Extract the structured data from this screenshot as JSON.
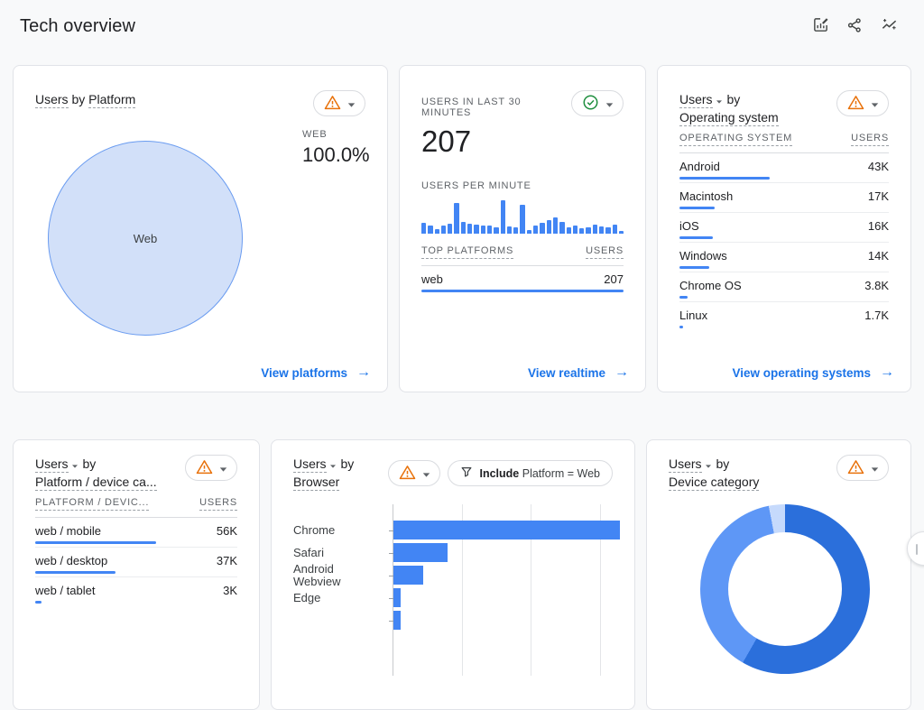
{
  "header": {
    "title": "Tech overview"
  },
  "ui": {
    "arrow": "→"
  },
  "colors": {
    "accent_blue": "#4285f4",
    "link_blue": "#1a73e8",
    "warning_orange": "#e8710a",
    "ok_green": "#1e8e3e",
    "pie_fill": "#d2e0f9",
    "pie_stroke": "#699bf0",
    "donut": [
      "#2b6fdb",
      "#5e97f6",
      "#c6dafc"
    ]
  },
  "cards": {
    "platform_pie": {
      "title_metric": "Users",
      "title_joiner": "by",
      "title_dimension": "Platform",
      "legend_label": "WEB",
      "legend_value": "100.0%",
      "link_label": "View platforms",
      "chart_data": {
        "type": "pie",
        "slices": [
          {
            "label": "Web",
            "value_pct": 100.0
          }
        ]
      }
    },
    "realtime": {
      "heading": "USERS IN LAST 30 MINUTES",
      "count": "207",
      "subheading": "USERS PER MINUTE",
      "col_dimension": "TOP PLATFORMS",
      "col_metric": "USERS",
      "rows": [
        {
          "label": "web",
          "value": "207",
          "bar_pct": 100
        }
      ],
      "link_label": "View realtime",
      "chart_data": {
        "type": "bar",
        "unit": "relative users per minute (% of max)",
        "values": [
          32,
          25,
          14,
          25,
          30,
          93,
          36,
          30,
          28,
          25,
          24,
          20,
          100,
          22,
          18,
          86,
          12,
          24,
          32,
          40,
          48,
          35,
          20,
          25,
          15,
          18,
          27,
          22,
          20,
          26,
          9
        ]
      }
    },
    "operating_system": {
      "title_metric": "Users",
      "title_joiner": "by",
      "title_dimension": "Operating system",
      "col_dimension": "OPERATING SYSTEM",
      "col_metric": "USERS",
      "rows": [
        {
          "label": "Android",
          "value": "43K",
          "bar_pct": 100
        },
        {
          "label": "Macintosh",
          "value": "17K",
          "bar_pct": 39.5
        },
        {
          "label": "iOS",
          "value": "16K",
          "bar_pct": 37.2
        },
        {
          "label": "Windows",
          "value": "14K",
          "bar_pct": 32.6
        },
        {
          "label": "Chrome OS",
          "value": "3.8K",
          "bar_pct": 8.8
        },
        {
          "label": "Linux",
          "value": "1.7K",
          "bar_pct": 4.0
        }
      ],
      "link_label": "View operating systems"
    },
    "platform_device": {
      "title_metric": "Users",
      "title_joiner": "by",
      "title_dimension": "Platform / device ca...",
      "col_dimension": "PLATFORM / DEVIC...",
      "col_metric": "USERS",
      "rows": [
        {
          "label": "web / mobile",
          "value": "56K",
          "bar_pct": 100
        },
        {
          "label": "web / desktop",
          "value": "37K",
          "bar_pct": 66
        },
        {
          "label": "web / tablet",
          "value": "3K",
          "bar_pct": 5.4
        }
      ]
    },
    "browser": {
      "title_metric": "Users",
      "title_joiner": "by",
      "title_dimension": "Browser",
      "filter_chip": {
        "keyword": "Include",
        "condition": "Platform = Web"
      },
      "chart_data": {
        "type": "bar",
        "orientation": "horizontal",
        "categories": [
          "Chrome",
          "Safari",
          "Android Webview",
          "Edge",
          ""
        ],
        "values_pct_of_max": [
          100,
          24,
          13,
          3,
          3
        ],
        "note": "value axis labels cut off below viewport; last bar partially visible"
      }
    },
    "device_category": {
      "title_metric": "Users",
      "title_joiner": "by",
      "title_dimension": "Device category",
      "chart_data": {
        "type": "donut",
        "slices_pct": [
          58.3,
          38.6,
          3.1
        ]
      }
    }
  }
}
